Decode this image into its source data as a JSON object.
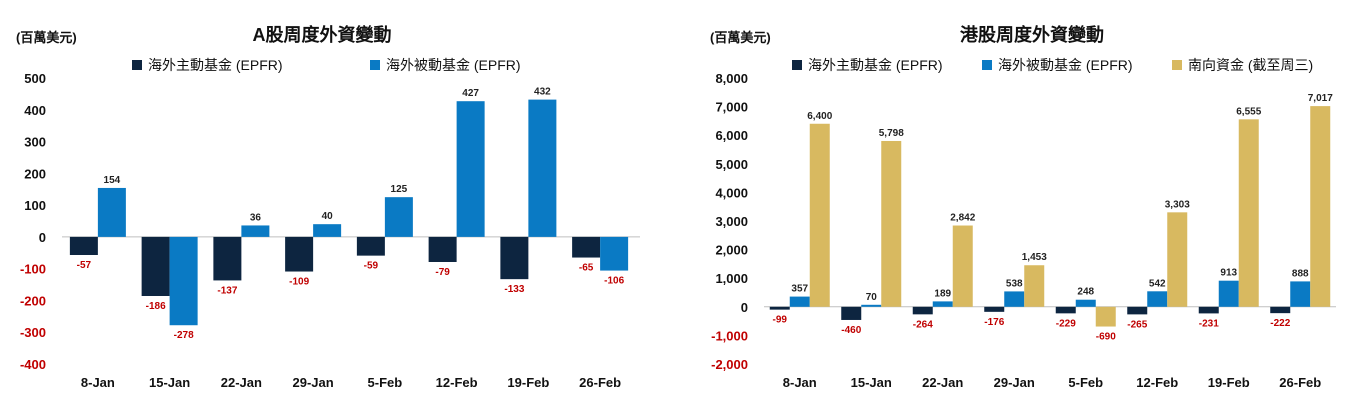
{
  "colors": {
    "active": "#0d2540",
    "passive": "#0a7ac4",
    "southbound": "#d8b960",
    "negative": "#c00000",
    "axis": "#bfbfbf"
  },
  "chart_data": [
    {
      "type": "bar",
      "title": "A股周度外資變動",
      "unit": "(百萬美元)",
      "categories": [
        "8-Jan",
        "15-Jan",
        "22-Jan",
        "29-Jan",
        "5-Feb",
        "12-Feb",
        "19-Feb",
        "26-Feb"
      ],
      "yticks": [
        "500",
        "400",
        "300",
        "200",
        "100",
        "0",
        "-100",
        "-200",
        "-300",
        "-400"
      ],
      "ylim": [
        -400,
        500
      ],
      "series": [
        {
          "name": "海外主動基金 (EPFR)",
          "color_key": "active",
          "values": [
            -57,
            -186,
            -137,
            -109,
            -59,
            -79,
            -133,
            -65
          ],
          "labels": [
            "-57",
            "-186",
            "-137",
            "-109",
            "-59",
            "-79",
            "-133",
            "-65"
          ]
        },
        {
          "name": "海外被動基金 (EPFR)",
          "color_key": "passive",
          "values": [
            154,
            -278,
            36,
            40,
            125,
            427,
            432,
            -106
          ],
          "labels": [
            "154",
            "-278",
            "36",
            "40",
            "125",
            "427",
            "432",
            "-106"
          ]
        }
      ]
    },
    {
      "type": "bar",
      "title": "港股周度外資變動",
      "unit": "(百萬美元)",
      "categories": [
        "8-Jan",
        "15-Jan",
        "22-Jan",
        "29-Jan",
        "5-Feb",
        "12-Feb",
        "19-Feb",
        "26-Feb"
      ],
      "yticks": [
        "8,000",
        "7,000",
        "6,000",
        "5,000",
        "4,000",
        "3,000",
        "2,000",
        "1,000",
        "0",
        "-1,000",
        "-2,000"
      ],
      "ylim": [
        -2000,
        8000
      ],
      "series": [
        {
          "name": "海外主動基金 (EPFR)",
          "color_key": "active",
          "values": [
            -99,
            -460,
            -264,
            -176,
            -229,
            -265,
            -231,
            -222
          ],
          "labels": [
            "-99",
            "-460",
            "-264",
            "-176",
            "-229",
            "-265",
            "-231",
            "-222"
          ]
        },
        {
          "name": "海外被動基金 (EPFR)",
          "color_key": "passive",
          "values": [
            357,
            70,
            189,
            538,
            248,
            542,
            913,
            888
          ],
          "labels": [
            "357",
            "70",
            "189",
            "538",
            "248",
            "542",
            "913",
            "888"
          ]
        },
        {
          "name": "南向資金 (截至周三)",
          "color_key": "southbound",
          "values": [
            6400,
            5798,
            2842,
            1453,
            -690,
            3303,
            6555,
            7017
          ],
          "labels": [
            "6,400",
            "5,798",
            "2,842",
            "1,453",
            "-690",
            "3,303",
            "6,555",
            "7,017"
          ]
        }
      ]
    }
  ]
}
